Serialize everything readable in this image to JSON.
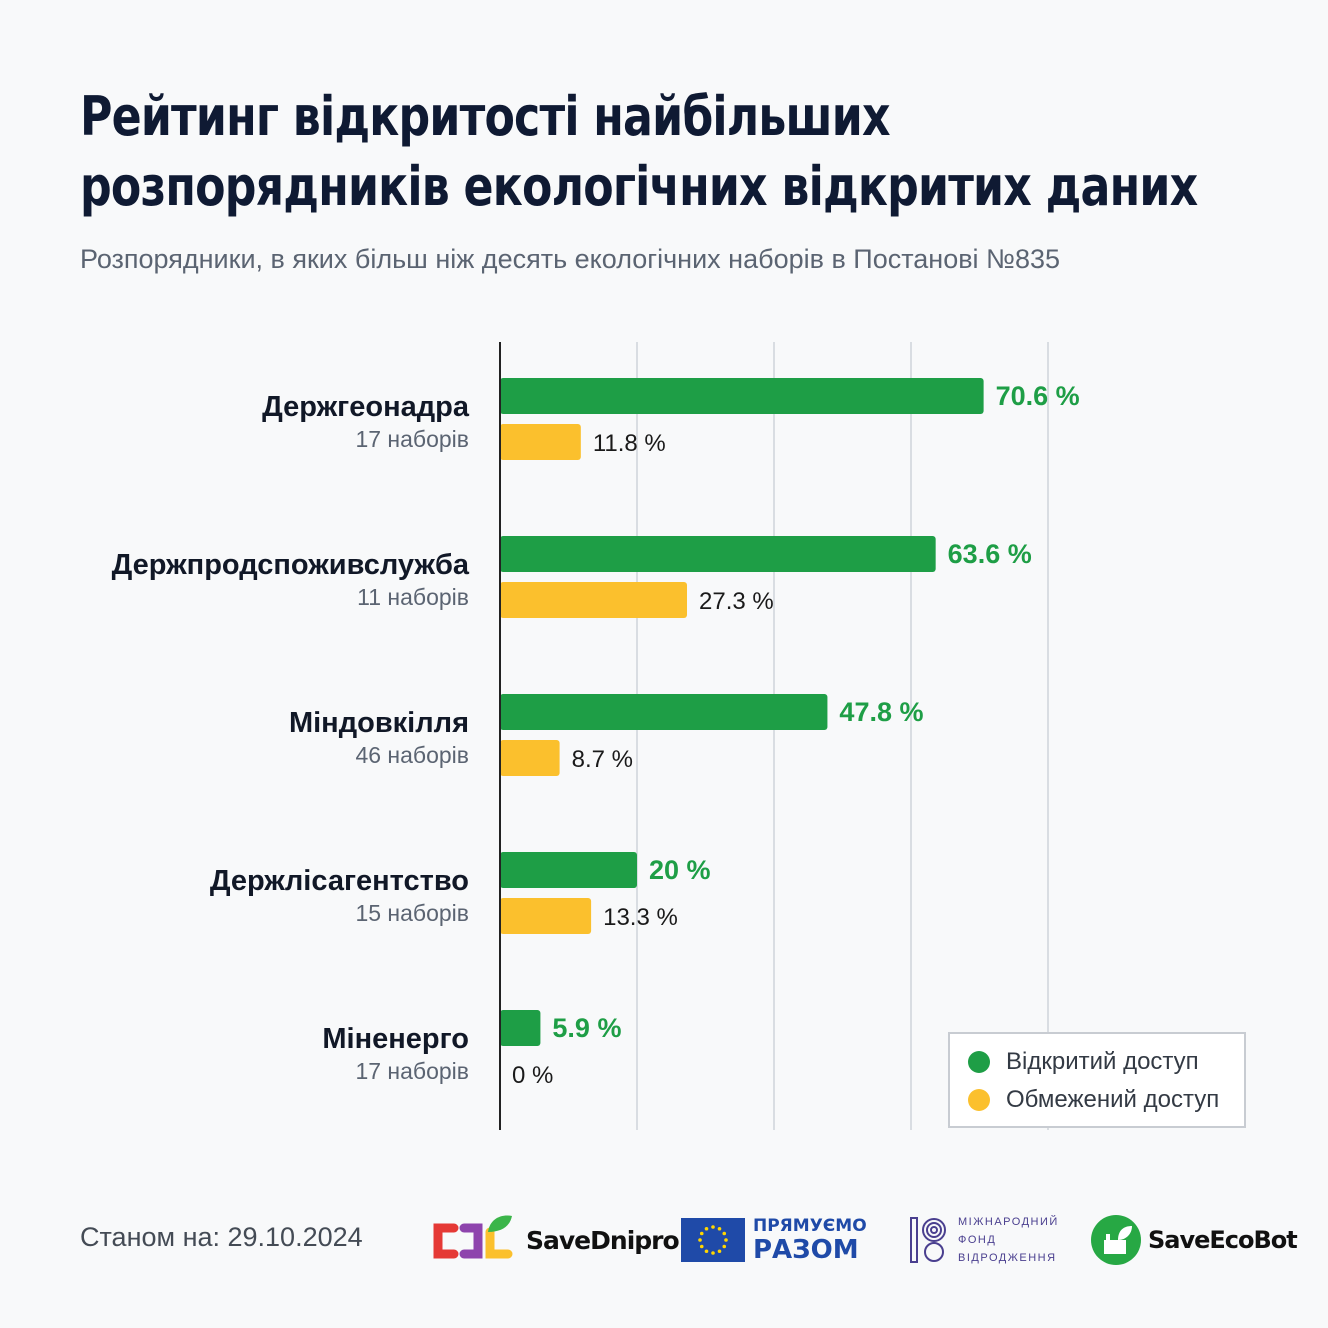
{
  "title_lines": [
    "Рейтинг відкритості найбільших",
    "розпорядників екологічних відкритих даних"
  ],
  "subtitle": "Розпорядники, в яких більш ніж десять екологічних наборів в Постанові №835",
  "colors": {
    "open": "#1e9e46",
    "restricted": "#fbc02d",
    "open_label": "#1e9e46",
    "restricted_label": "#1a1a1a",
    "grid": "#d9dde2",
    "axis": "#222222"
  },
  "chart_data": {
    "type": "bar",
    "orientation": "horizontal",
    "categories": [
      "Держгеонадра",
      "Держпродспоживслужба",
      "Міндовкілля",
      "Держлісагентство",
      "Міненерго"
    ],
    "category_sublabels": [
      "17 наборів",
      "11 наборів",
      "46 наборів",
      "15 наборів",
      "17 наборів"
    ],
    "series": [
      {
        "name": "Відкритий доступ",
        "values": [
          70.6,
          63.6,
          47.8,
          20,
          5.9
        ],
        "labels": [
          "70.6 %",
          "63.6 %",
          "47.8 %",
          "20 %",
          "5.9 %"
        ]
      },
      {
        "name": "Обмежений доступ",
        "values": [
          11.8,
          27.3,
          8.7,
          13.3,
          0
        ],
        "labels": [
          "11.8 %",
          "27.3 %",
          "8.7 %",
          "13.3 %",
          "0 %"
        ]
      }
    ],
    "xlim": [
      0,
      100
    ],
    "grid": true,
    "legend": "bottom-right"
  },
  "footer": {
    "date_text": "Станом на: 29.10.2024",
    "logos": {
      "savednipro": {
        "prefix": "Save",
        "suffix": "Dnipro"
      },
      "eu": {
        "line1": "ПРЯМУЄМО",
        "line2": "РАЗОМ"
      },
      "irf": {
        "line1": "МІЖНАРОДНИЙ",
        "line2": "ФОНД",
        "line3": "ВІДРОДЖЕННЯ"
      },
      "saveecobot": {
        "prefix": "Save",
        "suffix": "EcoBot"
      }
    }
  }
}
